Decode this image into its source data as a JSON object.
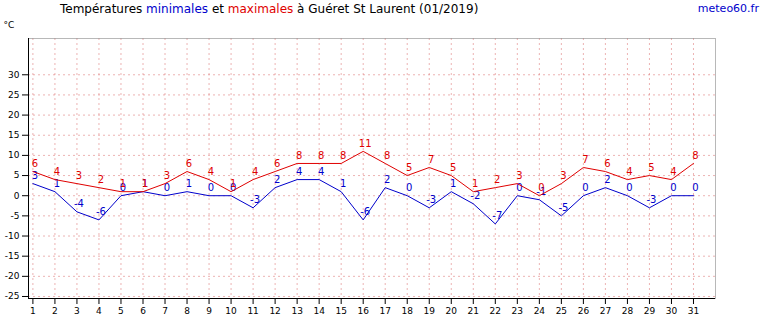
{
  "chart_data": {
    "type": "line",
    "title": "Températures minimales et maximales à Guéret St Laurent (01/2019)",
    "source": "meteo60.fr",
    "y_label": "°C",
    "x": [
      1,
      2,
      3,
      4,
      5,
      6,
      7,
      8,
      9,
      10,
      11,
      12,
      13,
      14,
      15,
      16,
      17,
      18,
      19,
      20,
      21,
      22,
      23,
      24,
      25,
      26,
      27,
      28,
      29,
      30,
      31
    ],
    "series": [
      {
        "name": "minimales",
        "color": "#0000cc",
        "values": [
          3,
          1,
          -4,
          -6,
          0,
          1,
          0,
          1,
          0,
          0,
          -3,
          2,
          4,
          4,
          1,
          -6,
          2,
          0,
          -3,
          1,
          -2,
          -7,
          0,
          -1,
          -5,
          0,
          2,
          0,
          -3,
          0,
          0
        ]
      },
      {
        "name": "maximales",
        "color": "#e00000",
        "values": [
          6,
          4,
          3,
          2,
          1,
          1,
          3,
          6,
          4,
          1,
          4,
          6,
          8,
          8,
          8,
          11,
          8,
          5,
          7,
          5,
          1,
          2,
          3,
          0,
          3,
          7,
          6,
          4,
          5,
          4,
          8
        ]
      }
    ],
    "xlim": [
      0.8,
      32
    ],
    "xticks": [
      1,
      2,
      3,
      4,
      5,
      6,
      7,
      8,
      9,
      10,
      11,
      12,
      13,
      14,
      15,
      16,
      17,
      18,
      19,
      20,
      21,
      22,
      23,
      24,
      25,
      26,
      27,
      28,
      29,
      30,
      31
    ],
    "ylim": [
      -25.5,
      39
    ],
    "yticks": [
      -25,
      -20,
      -15,
      -10,
      -5,
      0,
      5,
      10,
      15,
      20,
      25,
      30
    ],
    "grid": true,
    "data_labels": true
  }
}
